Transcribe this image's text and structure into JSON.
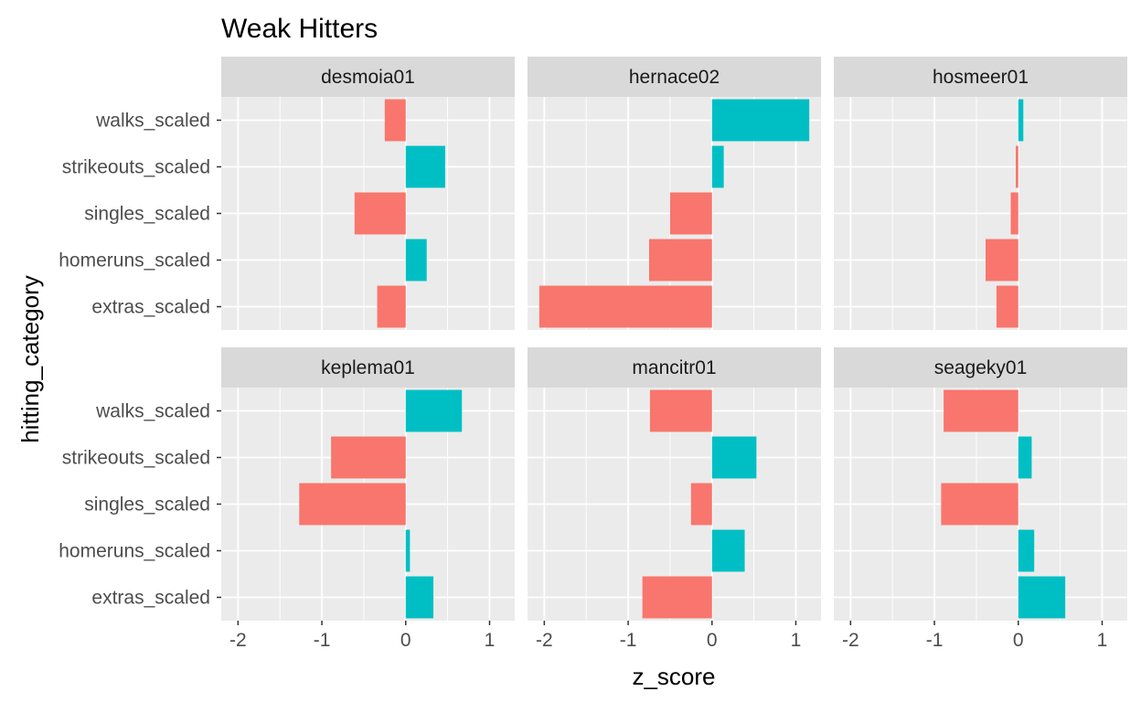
{
  "chart_data": {
    "type": "bar",
    "title": "Weak Hitters",
    "xlabel": "z_score",
    "ylabel": "hitting_category",
    "categories": [
      "extras_scaled",
      "homeruns_scaled",
      "singles_scaled",
      "strikeouts_scaled",
      "walks_scaled"
    ],
    "xlim": [
      -2.2,
      1.3
    ],
    "xticks": [
      "-2",
      "-1",
      "0",
      "1"
    ],
    "xtick_values": [
      -2,
      -1,
      0,
      1
    ],
    "grid": true,
    "facets": [
      {
        "name": "desmoia01",
        "values": {
          "walks_scaled": -0.25,
          "strikeouts_scaled": 0.47,
          "singles_scaled": -0.61,
          "homeruns_scaled": 0.25,
          "extras_scaled": -0.34
        }
      },
      {
        "name": "hernace02",
        "values": {
          "walks_scaled": 1.16,
          "strikeouts_scaled": 0.14,
          "singles_scaled": -0.5,
          "homeruns_scaled": -0.75,
          "extras_scaled": -2.06
        }
      },
      {
        "name": "hosmeer01",
        "values": {
          "walks_scaled": 0.06,
          "strikeouts_scaled": -0.03,
          "singles_scaled": -0.09,
          "homeruns_scaled": -0.39,
          "extras_scaled": -0.26
        }
      },
      {
        "name": "keplema01",
        "values": {
          "walks_scaled": 0.67,
          "strikeouts_scaled": -0.89,
          "singles_scaled": -1.27,
          "homeruns_scaled": 0.05,
          "extras_scaled": 0.33
        }
      },
      {
        "name": "mancitr01",
        "values": {
          "walks_scaled": -0.74,
          "strikeouts_scaled": 0.53,
          "singles_scaled": -0.25,
          "homeruns_scaled": 0.39,
          "extras_scaled": -0.83
        }
      },
      {
        "name": "seageky01",
        "values": {
          "walks_scaled": -0.89,
          "strikeouts_scaled": 0.16,
          "singles_scaled": -0.92,
          "homeruns_scaled": 0.19,
          "extras_scaled": 0.56
        }
      }
    ],
    "colors": {
      "negative": "#F8766D",
      "positive": "#00BFC4",
      "panel": "#EBEBEB",
      "strip": "#D9D9D9",
      "grid": "#FFFFFF"
    }
  }
}
